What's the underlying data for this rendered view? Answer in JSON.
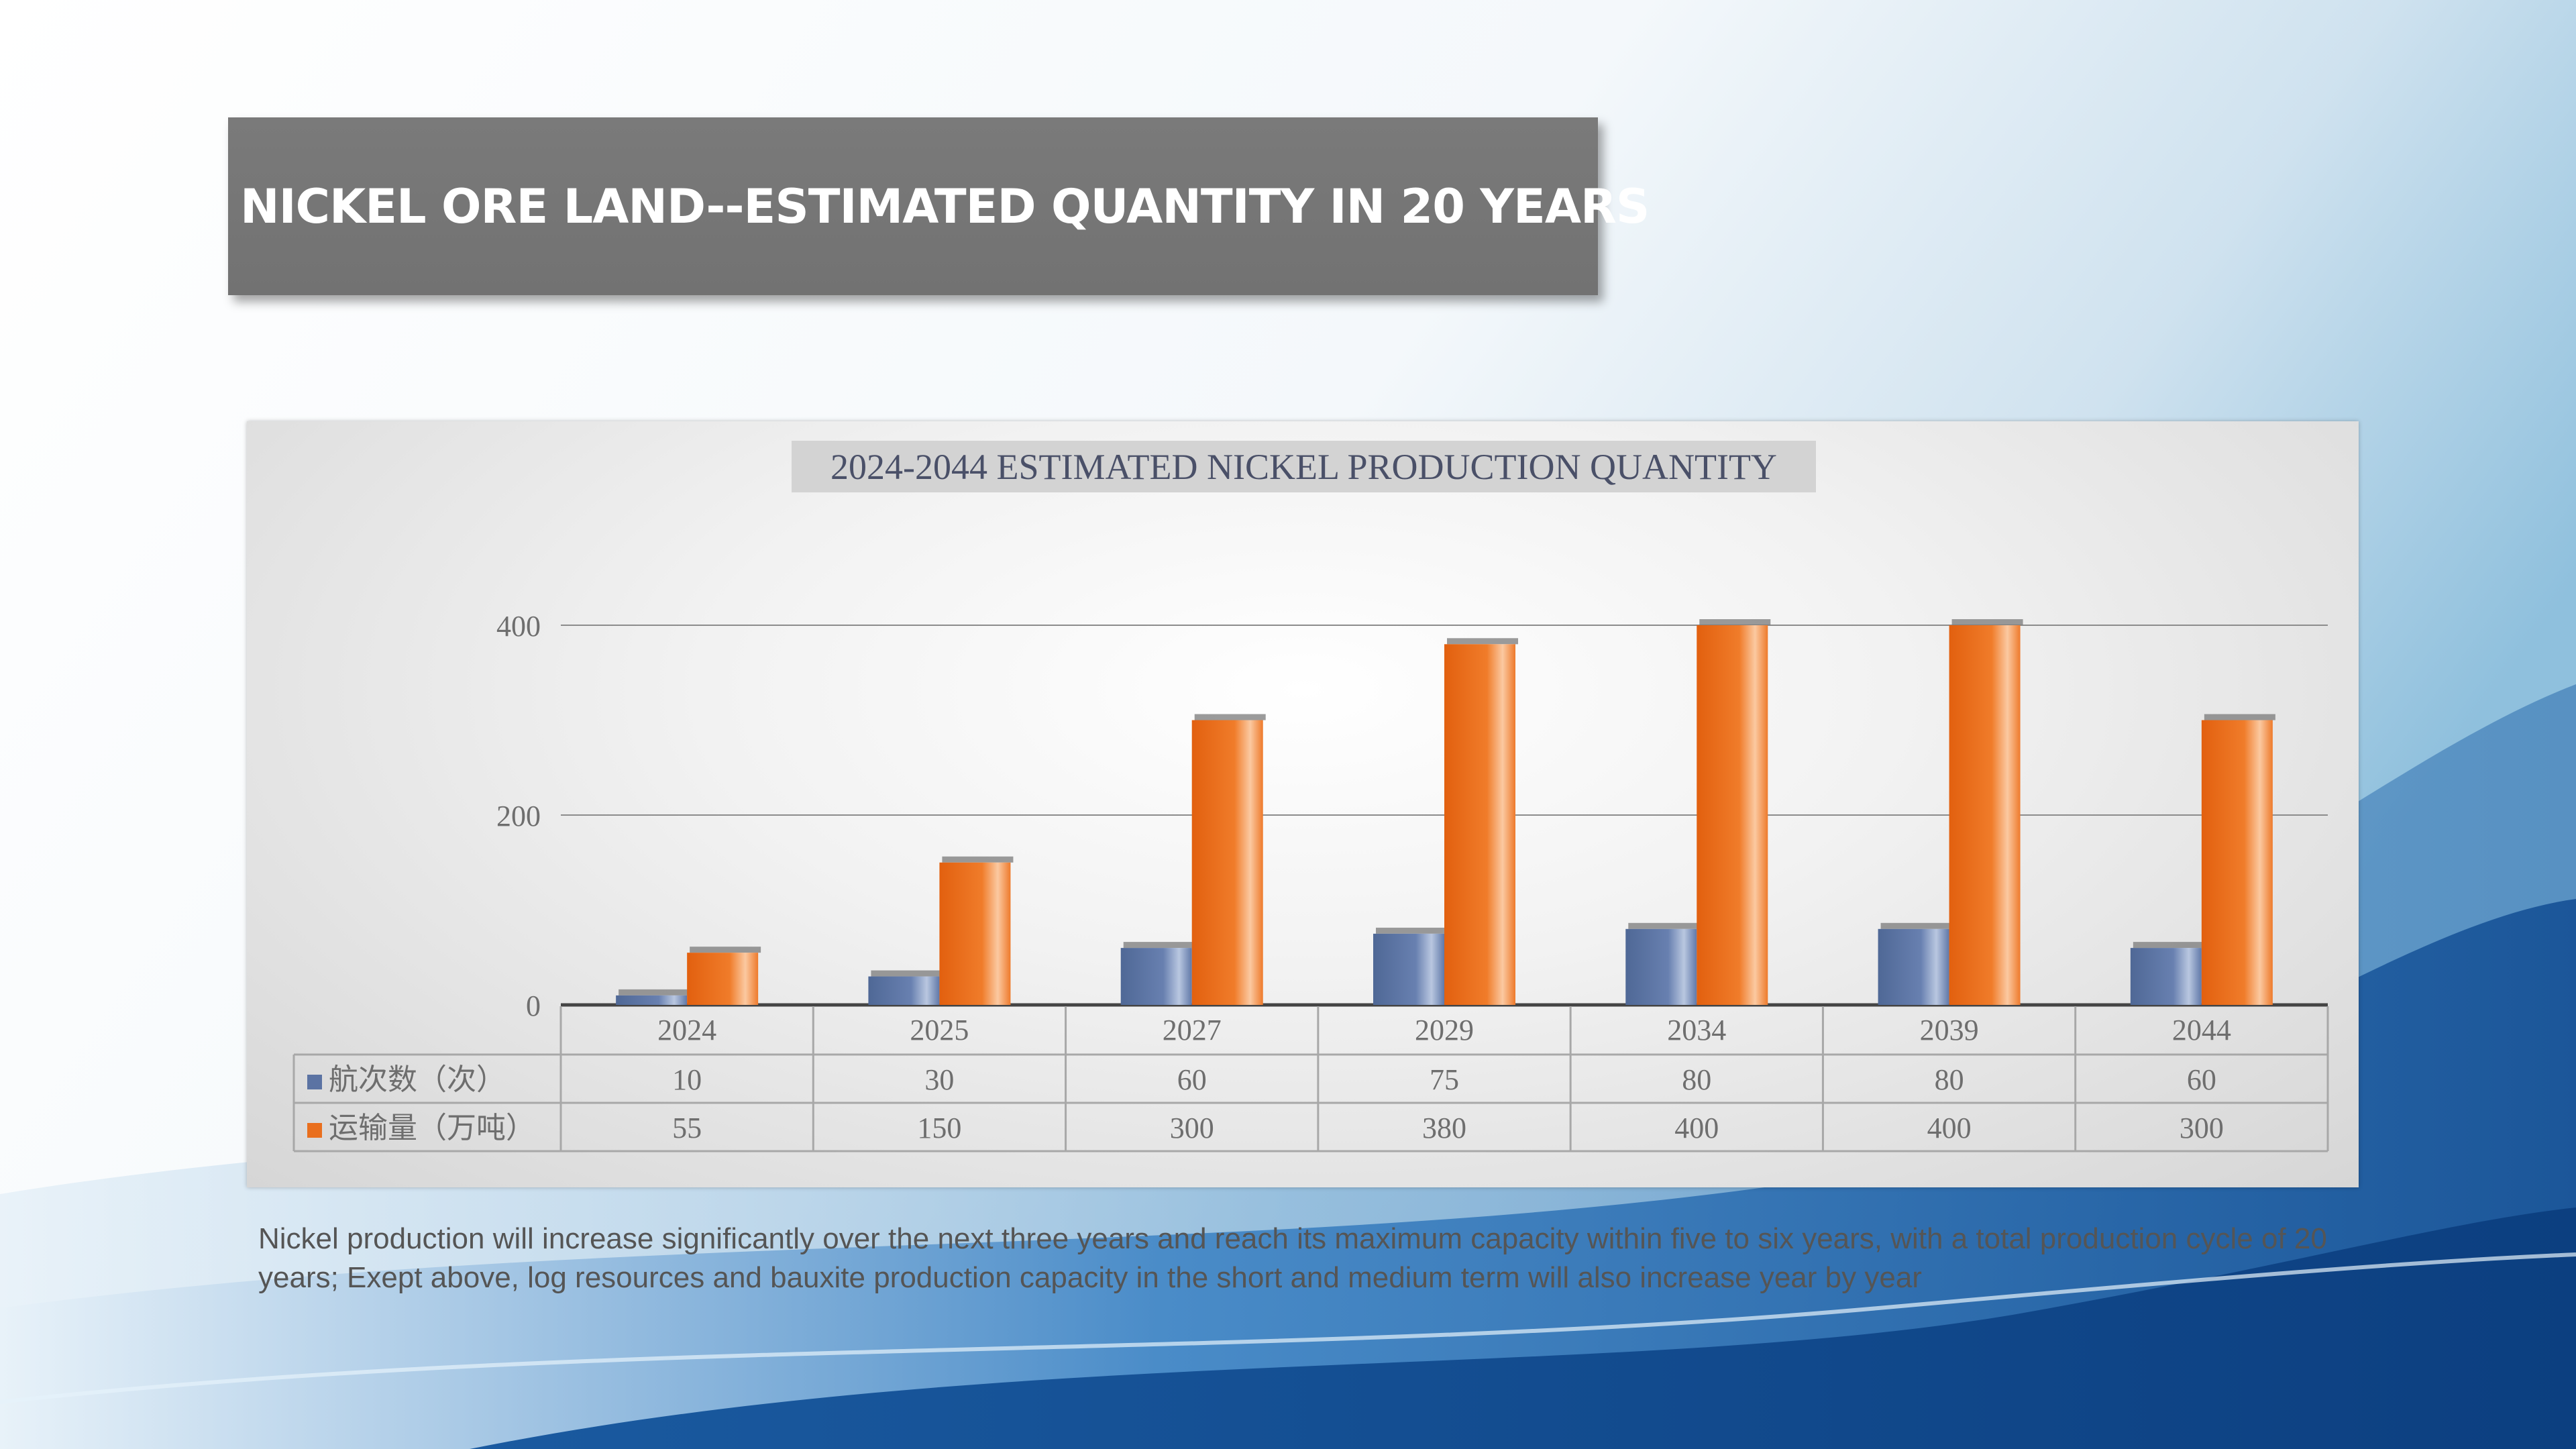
{
  "slide": {
    "title": "NICKEL ORE LAND--ESTIMATED  QUANTITY  IN 20 YEARS",
    "caption": "Nickel production will increase significantly over the next three years and reach its maximum capacity within five to six years, with a total production cycle of 20 years; Exept above, log resources and bauxite production capacity in the short and medium term will also increase year by year"
  },
  "chart_data": {
    "type": "bar",
    "title": "2024-2044 ESTIMATED NICKEL PRODUCTION QUANTITY",
    "categories": [
      "2024",
      "2025",
      "2027",
      "2029",
      "2034",
      "2039",
      "2044"
    ],
    "series": [
      {
        "name": "航次数（次）",
        "values": [
          10,
          30,
          60,
          75,
          80,
          80,
          60
        ],
        "color": "#5b73a3"
      },
      {
        "name": "运输量（万吨）",
        "values": [
          55,
          150,
          300,
          380,
          400,
          400,
          300
        ],
        "color": "#e96f1e"
      }
    ],
    "yticks": [
      0,
      200,
      400
    ],
    "ylim": [
      0,
      400
    ],
    "grid": true,
    "legend": "data-table",
    "data_table": true
  },
  "colors": {
    "title_box": "#767676",
    "chart_title_bg": "#d3d3d3",
    "gridline": "#8c8c8c",
    "wave_blue": "#1f5fa8"
  }
}
